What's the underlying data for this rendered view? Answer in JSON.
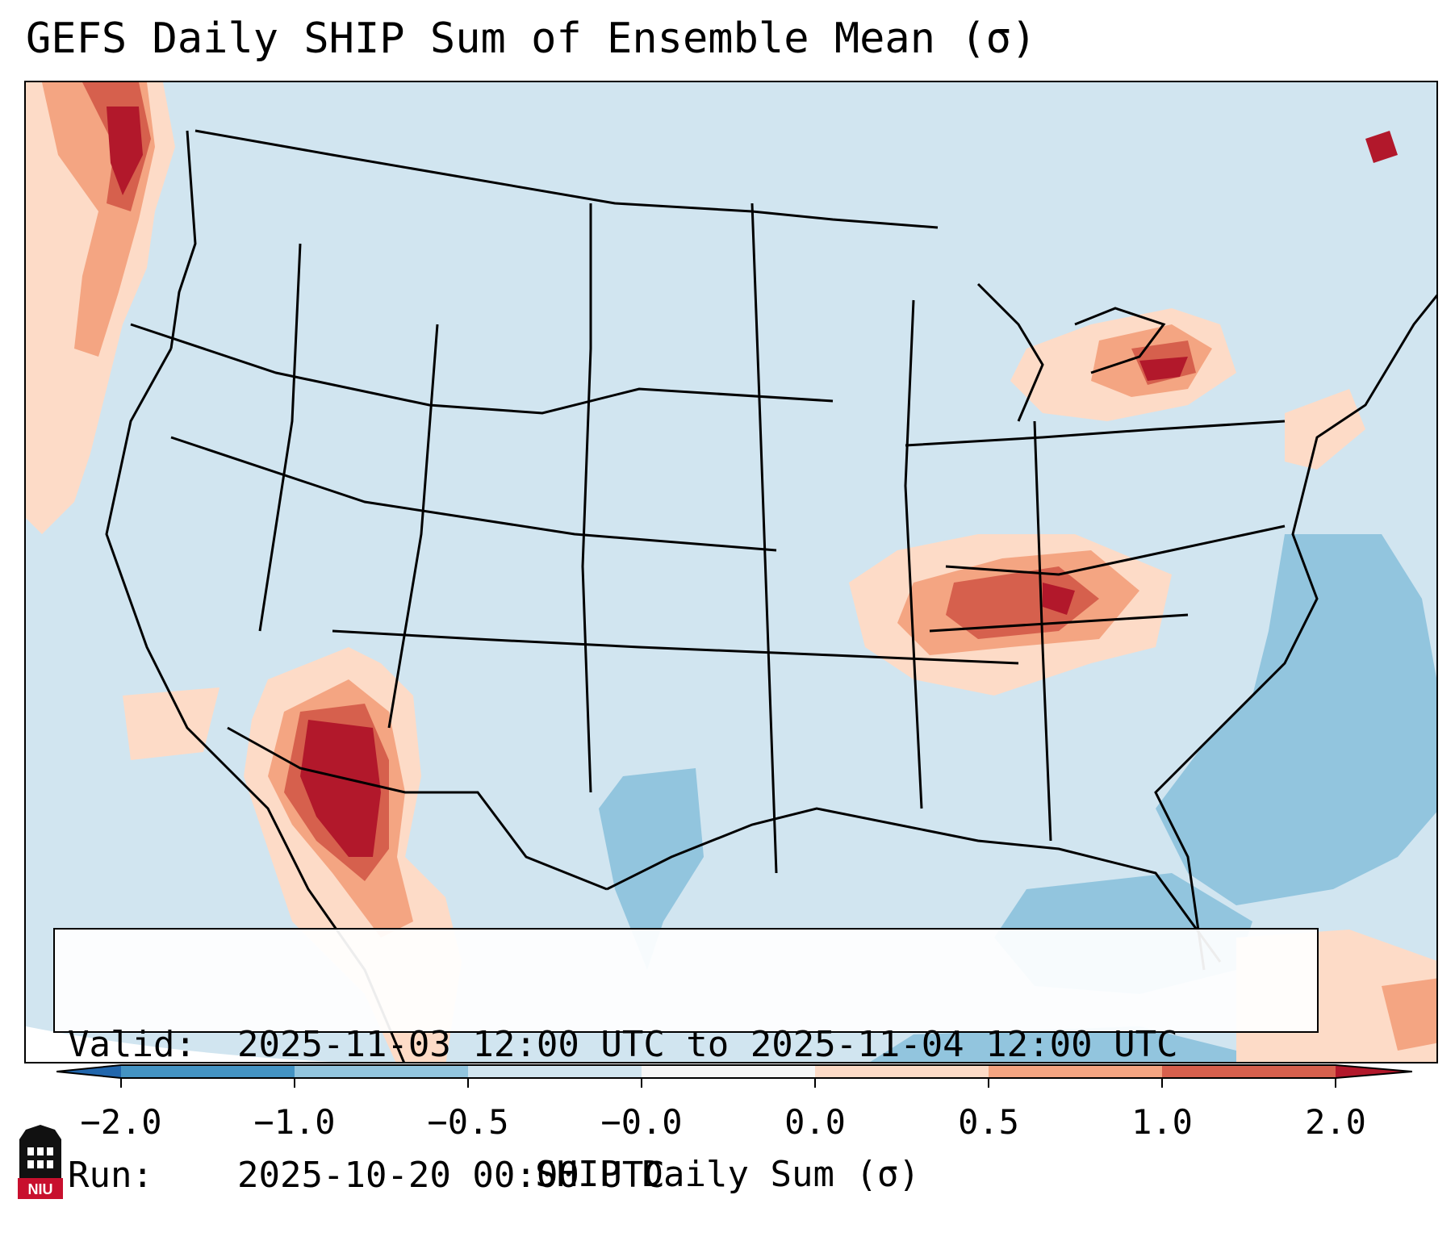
{
  "title": "GEFS Daily SHIP Sum of Ensemble Mean (σ)",
  "info": {
    "valid_key": "Valid:",
    "valid_value": "2025-11-03 12:00 UTC to 2025-11-04 12:00 UTC",
    "run_key": "Run:",
    "run_value": "2025-10-20 00:00 UTC"
  },
  "colorbar": {
    "label": "SHIP Daily Sum (σ)",
    "ticks": [
      "−2.0",
      "−1.0",
      "−0.5",
      "−0.0",
      "0.0",
      "0.5",
      "1.0",
      "2.0"
    ],
    "bins": [
      {
        "range": "< -2.0",
        "color": "#2166ac"
      },
      {
        "range": "-2.0 to -1.0",
        "color": "#4393c3"
      },
      {
        "range": "-1.0 to -0.5",
        "color": "#92c5de"
      },
      {
        "range": "-0.5 to -0.0",
        "color": "#d1e5f0"
      },
      {
        "range": "-0.0 to 0.0",
        "color": "#f7f7f7"
      },
      {
        "range": "0.0 to 0.5",
        "color": "#fddbc7"
      },
      {
        "range": "0.5 to 1.0",
        "color": "#f4a582"
      },
      {
        "range": "1.0 to 2.0",
        "color": "#d6604d"
      },
      {
        "range": "> 2.0",
        "color": "#b2182b"
      }
    ]
  },
  "logo": {
    "text": "NIU",
    "color": "#c8102e"
  },
  "colors": {
    "background": "#d1e5f0",
    "land_outline": "#000000"
  }
}
